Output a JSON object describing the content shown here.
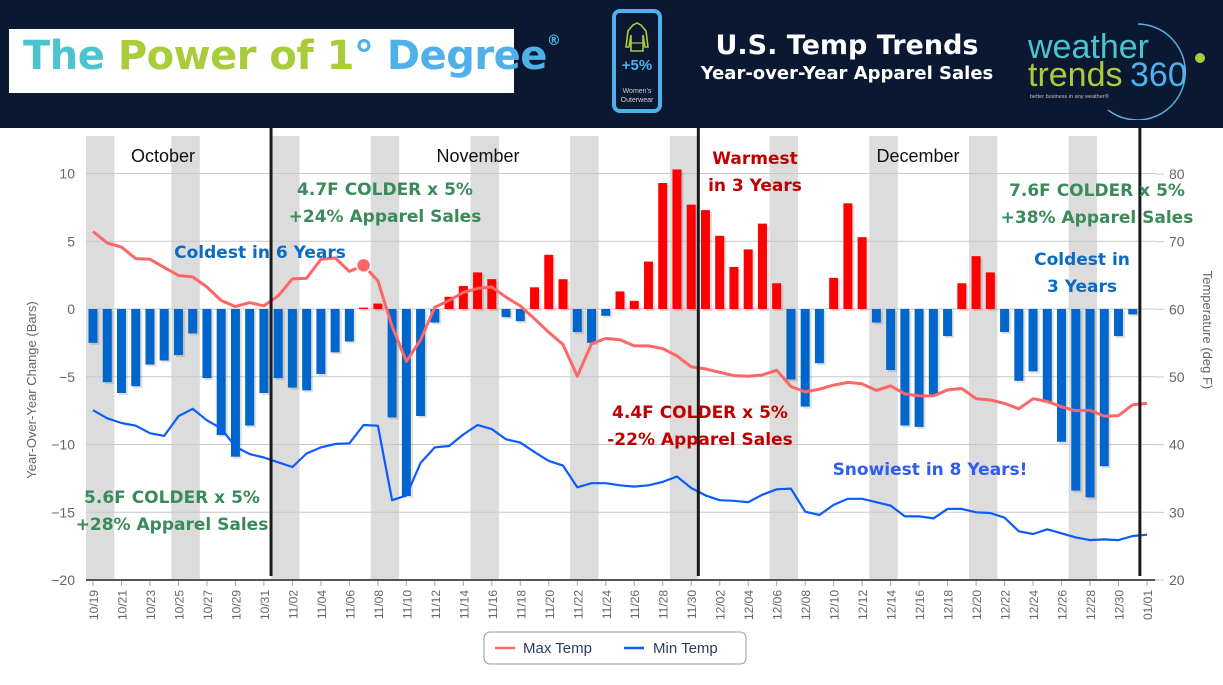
{
  "header": {
    "title_parts": [
      "The ",
      "Power of 1",
      "° Degree"
    ],
    "title_registered": "®",
    "badge_value": "+5%",
    "badge_label_1": "Women's",
    "badge_label_2": "Outerwear",
    "heading_1": "U.S. Temp Trends",
    "heading_2": "Year-over-Year Apparel Sales",
    "logo_word_1": "weather",
    "logo_word_2": "trends",
    "logo_word_3": "360",
    "logo_tagline": "better business in any weather®"
  },
  "colors": {
    "header_bg": "#0b1831",
    "bar_positive": "#ff0000",
    "bar_negative": "#0066cc",
    "max_temp": "#ff6666",
    "min_temp": "#0a5cff",
    "weekend_band": "#dcdcdc",
    "ann_green": "#3a8a5a",
    "ann_red": "#c00000",
    "ann_blue": "#0a6bc4",
    "ann_blue2": "#2e5df0"
  },
  "chart_data": {
    "type": "bar+line",
    "title": "U.S. Temp Trends — Year-over-Year Apparel Sales",
    "x": [
      "10/19",
      "10/20",
      "10/21",
      "10/22",
      "10/23",
      "10/24",
      "10/25",
      "10/26",
      "10/27",
      "10/28",
      "10/29",
      "10/30",
      "10/31",
      "11/01",
      "11/02",
      "11/03",
      "11/04",
      "11/05",
      "11/06",
      "11/07",
      "11/08",
      "11/09",
      "11/10",
      "11/11",
      "11/12",
      "11/13",
      "11/14",
      "11/15",
      "11/16",
      "11/17",
      "11/18",
      "11/19",
      "11/20",
      "11/21",
      "11/22",
      "11/23",
      "11/24",
      "11/25",
      "11/26",
      "11/27",
      "11/28",
      "11/29",
      "11/30",
      "12/01",
      "12/02",
      "12/03",
      "12/04",
      "12/05",
      "12/06",
      "12/07",
      "12/08",
      "12/09",
      "12/10",
      "12/11",
      "12/12",
      "12/13",
      "12/14",
      "12/15",
      "12/16",
      "12/17",
      "12/18",
      "12/19",
      "12/20",
      "12/21",
      "12/22",
      "12/23",
      "12/24",
      "12/25",
      "12/26",
      "12/27",
      "12/28",
      "12/29",
      "12/30",
      "12/31",
      "01/01"
    ],
    "tick_labels": [
      "10/19",
      "10/21",
      "10/23",
      "10/25",
      "10/27",
      "10/29",
      "10/31",
      "11/02",
      "11/04",
      "11/06",
      "11/08",
      "11/10",
      "11/12",
      "11/14",
      "11/16",
      "11/18",
      "11/20",
      "11/22",
      "11/24",
      "11/26",
      "11/28",
      "11/30",
      "12/02",
      "12/04",
      "12/06",
      "12/08",
      "12/10",
      "12/12",
      "12/14",
      "12/16",
      "12/18",
      "12/20",
      "12/22",
      "12/24",
      "12/26",
      "12/28",
      "12/30",
      "01/01"
    ],
    "bars": {
      "name": "Year-Over-Year Change",
      "values": [
        -2.5,
        -5.4,
        -6.2,
        -5.7,
        -4.1,
        -3.8,
        -3.4,
        -1.8,
        -5.1,
        -9.3,
        -10.9,
        -8.6,
        -6.2,
        -5.1,
        -5.8,
        -6.0,
        -4.8,
        -3.2,
        -2.4,
        0.1,
        0.4,
        -8.0,
        -13.8,
        -7.9,
        -1.0,
        0.9,
        1.7,
        2.7,
        2.2,
        -0.6,
        -0.9,
        1.6,
        4.0,
        2.2,
        -1.7,
        -2.5,
        -0.5,
        1.3,
        0.6,
        3.5,
        9.3,
        10.3,
        7.7,
        7.3,
        5.4,
        3.1,
        4.4,
        6.3,
        1.9,
        -5.2,
        -7.2,
        -4.0,
        2.3,
        7.8,
        5.3,
        -1.0,
        -4.5,
        -8.6,
        -8.7,
        -6.3,
        -2.0,
        1.9,
        3.9,
        2.7,
        -1.7,
        -5.3,
        -4.6,
        -6.9,
        -9.8,
        -13.4,
        -13.9,
        -11.6,
        -2.0,
        -0.4,
        null
      ]
    },
    "series": [
      {
        "name": "Max Temp",
        "axis": "right",
        "values": [
          71.5,
          69.8,
          69.2,
          67.5,
          67.4,
          66.2,
          65.0,
          64.8,
          63.3,
          61.3,
          60.4,
          61.0,
          60.5,
          62.0,
          64.5,
          64.6,
          67.4,
          67.6,
          65.6,
          66.5,
          64.2,
          57.5,
          52.3,
          55.5,
          60.3,
          61.3,
          62.5,
          63.1,
          63.3,
          61.8,
          60.5,
          58.6,
          56.6,
          54.8,
          50.1,
          54.9,
          55.7,
          55.5,
          54.6,
          54.6,
          54.2,
          53.1,
          51.5,
          51.2,
          50.7,
          50.2,
          50.1,
          50.3,
          51.0,
          48.6,
          47.8,
          48.2,
          48.8,
          49.2,
          49.0,
          48.0,
          48.7,
          47.5,
          47.2,
          47.2,
          48.1,
          48.3,
          46.8,
          46.6,
          46.1,
          45.3,
          46.8,
          46.4,
          45.6,
          45.0,
          45.1,
          44.2,
          44.3,
          45.9,
          46.1
        ]
      },
      {
        "name": "Min Temp",
        "axis": "right",
        "values": [
          45.1,
          43.9,
          43.2,
          42.8,
          41.7,
          41.3,
          44.2,
          45.3,
          43.6,
          42.4,
          39.7,
          38.6,
          38.1,
          37.4,
          36.7,
          38.7,
          39.6,
          40.1,
          40.2,
          42.9,
          42.8,
          31.8,
          32.5,
          37.3,
          39.6,
          39.8,
          41.5,
          42.9,
          42.3,
          40.8,
          40.3,
          38.9,
          37.6,
          36.9,
          33.7,
          34.3,
          34.3,
          34.0,
          33.8,
          34.0,
          34.5,
          35.3,
          33.6,
          32.5,
          31.8,
          31.7,
          31.5,
          32.6,
          33.4,
          33.5,
          30.1,
          29.6,
          31.1,
          32.0,
          32.0,
          31.5,
          31.0,
          29.4,
          29.4,
          29.1,
          30.5,
          30.5,
          30.0,
          29.9,
          29.2,
          27.2,
          26.8,
          27.5,
          26.9,
          26.3,
          25.9,
          26.0,
          25.9,
          26.5,
          26.7
        ]
      }
    ],
    "ylabel_left": "Year-Over-Year Change (Bars)",
    "ylabel_right": "Temperature (deg F)",
    "ylim_left": [
      -20,
      10
    ],
    "yticks_left": [
      "10",
      "5",
      "0",
      "−5",
      "−10",
      "−15",
      "−20"
    ],
    "ylim_right": [
      20,
      80
    ],
    "yticks_right": [
      "80",
      "70",
      "60",
      "50",
      "40",
      "30",
      "20"
    ],
    "grid": true,
    "legend": {
      "position": "bottom-center",
      "entries": [
        "Max Temp",
        "Min Temp"
      ]
    },
    "weekend_bands_start_dates": [
      "10/19",
      "10/25",
      "11/01",
      "11/08",
      "11/15",
      "11/22",
      "11/29",
      "12/06",
      "12/13",
      "12/20",
      "12/27"
    ],
    "month_dividers_after": [
      "10/31",
      "11/30",
      "12/31"
    ],
    "month_labels": [
      "October",
      "November",
      "December"
    ],
    "highlight_point": {
      "series": "Max Temp",
      "date": "11/07"
    },
    "annotations": [
      {
        "id": "oct-result",
        "lines": [
          "5.6F COLDER x 5%",
          "+28% Apparel Sales"
        ],
        "color": "green"
      },
      {
        "id": "nov-coldest",
        "lines": [
          "Coldest in 6 Years"
        ],
        "color": "blue"
      },
      {
        "id": "nov-result",
        "lines": [
          "4.7F COLDER x 5%",
          "+24% Apparel Sales"
        ],
        "color": "green"
      },
      {
        "id": "nov-warmest",
        "lines": [
          "Warmest",
          "in 3 Years"
        ],
        "color": "red"
      },
      {
        "id": "dec-result-neg",
        "lines": [
          "4.4F COLDER x 5%",
          "-22% Apparel Sales"
        ],
        "color": "red"
      },
      {
        "id": "dec-snowiest",
        "lines": [
          "Snowiest in 8 Years!"
        ],
        "color": "blue2"
      },
      {
        "id": "dec-result",
        "lines": [
          "7.6F COLDER x 5%",
          "+38% Apparel Sales"
        ],
        "color": "green"
      },
      {
        "id": "dec-coldest",
        "lines": [
          "Coldest in",
          "3 Years"
        ],
        "color": "blue"
      }
    ]
  }
}
